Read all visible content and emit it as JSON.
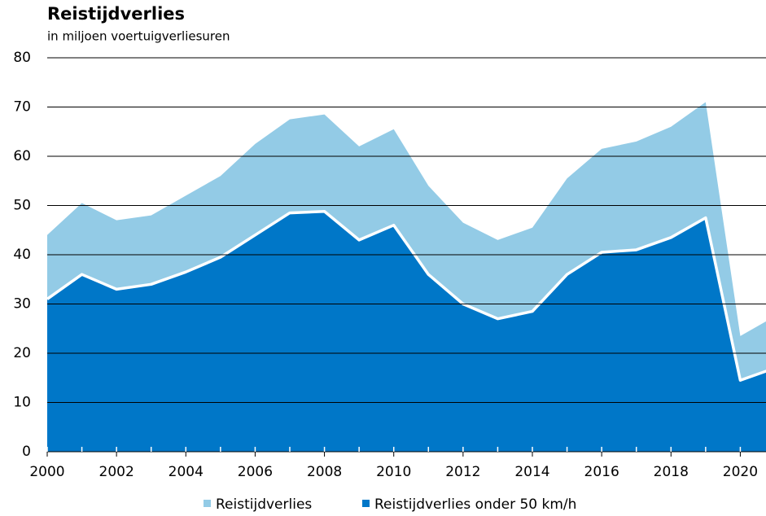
{
  "chart_data": {
    "type": "area",
    "title": "Reistijdverlies",
    "subtitle": "in miljoen voertuigverliesuren",
    "x": [
      2000,
      2001,
      2002,
      2003,
      2004,
      2005,
      2006,
      2007,
      2008,
      2009,
      2010,
      2011,
      2012,
      2013,
      2014,
      2015,
      2016,
      2017,
      2018,
      2019,
      2020,
      2021
    ],
    "series": [
      {
        "name": "Reistijdverlies",
        "color": "#93cbe6",
        "values": [
          44,
          50.5,
          47,
          48,
          52,
          56,
          62.5,
          67.5,
          68.5,
          62,
          65.5,
          54,
          46.5,
          43,
          45.5,
          55.5,
          61.5,
          63,
          66,
          71,
          23.5,
          27.5
        ]
      },
      {
        "name": "Reistijdverlies onder 50 km/h",
        "color": "#0077c8",
        "values": [
          31,
          36,
          33,
          34,
          36.5,
          39.5,
          44,
          48.5,
          48.8,
          43,
          46,
          36,
          30,
          27,
          28.5,
          36,
          40.5,
          41,
          43.5,
          47.5,
          14.5,
          17
        ]
      }
    ],
    "xlim": [
      2000,
      2021
    ],
    "xticks": [
      2000,
      2002,
      2004,
      2006,
      2008,
      2010,
      2012,
      2014,
      2016,
      2018,
      2020
    ],
    "ylim": [
      0,
      80
    ],
    "yticks": [
      0,
      10,
      20,
      30,
      40,
      50,
      60,
      70,
      80
    ],
    "grid": true
  }
}
